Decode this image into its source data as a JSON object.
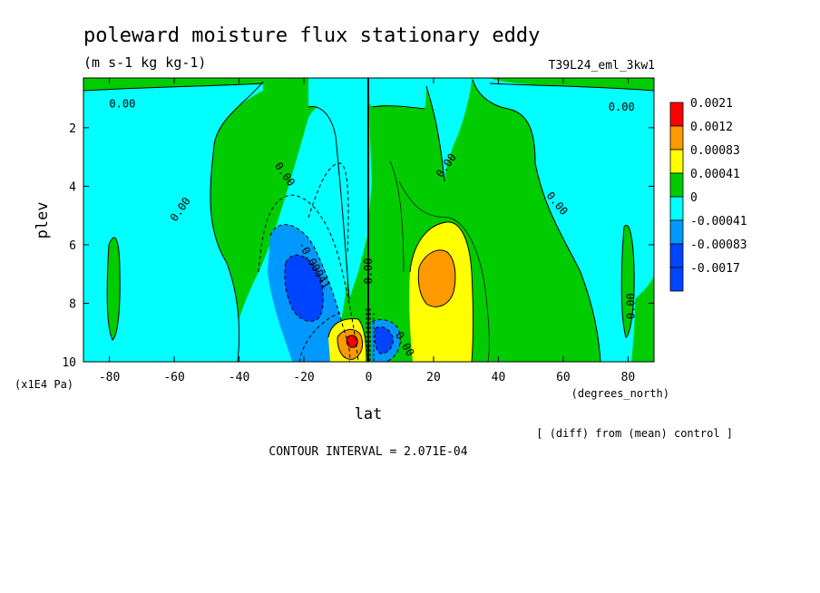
{
  "chart_data": {
    "type": "contour",
    "title": "poleward moisture flux stationary eddy",
    "units": "(m s-1 kg kg-1)",
    "run_label": "T39L24_eml_3kw1",
    "xlabel": "lat",
    "x_units": "(degrees_north)",
    "ylabel": "plev",
    "y_units": "(x1E4 Pa)",
    "xlim": [
      -88,
      88
    ],
    "ylim": [
      10,
      0.3
    ],
    "x_ticks": [
      "-80",
      "-60",
      "-40",
      "-20",
      "0",
      "20",
      "40",
      "60",
      "80"
    ],
    "x_tick_values": [
      -80,
      -60,
      -40,
      -20,
      0,
      20,
      40,
      60,
      80
    ],
    "y_ticks": [
      "2",
      "4",
      "6",
      "8",
      "10"
    ],
    "y_tick_values": [
      2,
      4,
      6,
      8,
      10
    ],
    "contour_interval_text": "CONTOUR INTERVAL = 2.071E-04",
    "footnote": "[ (diff) from (mean) control ]",
    "legend": [
      {
        "label": "0.0021",
        "color": "#ff0000"
      },
      {
        "label": "0.0012",
        "color": "#ff9900"
      },
      {
        "label": "0.00083",
        "color": "#ffff00"
      },
      {
        "label": "0.00041",
        "color": "#00cc00"
      },
      {
        "label": "0",
        "color": "#00ffff"
      },
      {
        "label": "-0.00041",
        "color": "#0099ff"
      },
      {
        "label": "-0.00083",
        "color": "#0044ff"
      },
      {
        "label": "-0.0017",
        "color": "#0044ff"
      }
    ],
    "contour_labels": [
      {
        "text": "0.00",
        "lat": -76,
        "plev": 1.2,
        "angle": 0
      },
      {
        "text": "0.00",
        "lat": 78,
        "plev": 1.3,
        "angle": 0
      },
      {
        "text": "0.00",
        "lat": -26,
        "plev": 3.6,
        "angle": 55
      },
      {
        "text": "0.00",
        "lat": 24,
        "plev": 3.3,
        "angle": -55
      },
      {
        "text": "0.00",
        "lat": -58,
        "plev": 4.8,
        "angle": -55
      },
      {
        "text": "0.00",
        "lat": 58,
        "plev": 4.6,
        "angle": 50
      },
      {
        "text": "-0.00041",
        "lat": -17,
        "plev": 6.7,
        "angle": 60
      },
      {
        "text": "0.00",
        "lat": 0,
        "plev": 6.9,
        "angle": -90
      },
      {
        "text": "0.00",
        "lat": 81,
        "plev": 8.1,
        "angle": -90
      },
      {
        "text": "0.00",
        "lat": 11,
        "plev": 9.4,
        "angle": 60
      }
    ]
  }
}
